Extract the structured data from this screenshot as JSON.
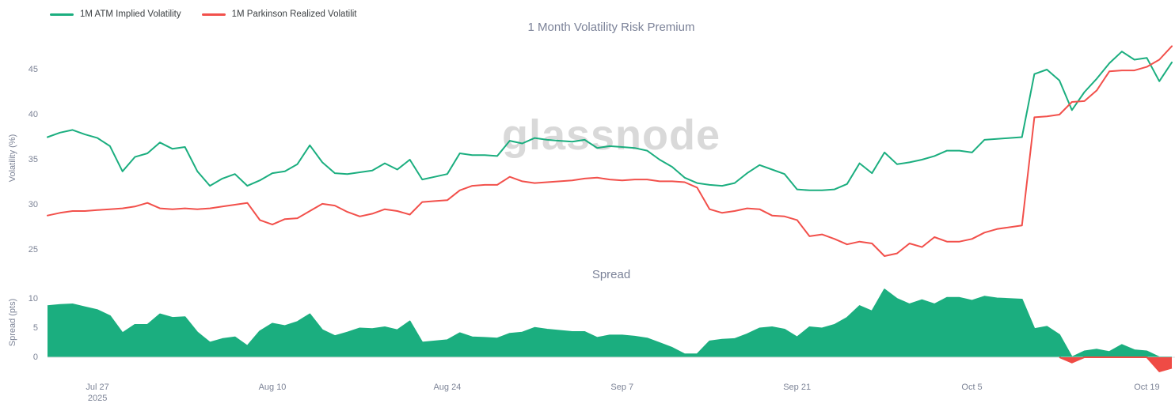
{
  "header": {
    "title": "1 Month Volatility Risk Premium",
    "legend": [
      {
        "label": "1M ATM Implied Volatility",
        "color": "#1BAE7F"
      },
      {
        "label": "1M Parkinson Realized Volatilit",
        "color": "#F2504B"
      }
    ]
  },
  "watermark": "glassnode",
  "colors": {
    "implied": "#1BAE7F",
    "realized": "#F2504B",
    "spread_positive": "#1BAE7F",
    "spread_negative": "#EF4B45",
    "baseline": "#DCDCDC",
    "axis_text": "#7C8396",
    "title_text": "#7B8298",
    "watermark": "#D9D9D9"
  },
  "chart_data": [
    {
      "type": "line",
      "title": "1 Month Volatility Risk Premium",
      "xlabel": "",
      "ylabel": "Volatility (%)",
      "ylim": [
        22.9,
        47.5
      ],
      "yticks": [
        25,
        30,
        35,
        40,
        45
      ],
      "grid": false,
      "legend_position": "top-left",
      "x_interval": "daily",
      "x_range": "Jul 23 2025 - Oct 21 2025",
      "xticks": [
        {
          "label": "Jul 27",
          "sub": "2025",
          "day": 4
        },
        {
          "label": "Aug 10",
          "day": 18
        },
        {
          "label": "Aug 24",
          "day": 32
        },
        {
          "label": "Sep 7",
          "day": 46
        },
        {
          "label": "Sep 21",
          "day": 60
        },
        {
          "label": "Oct 5",
          "day": 74
        },
        {
          "label": "Oct 19",
          "day": 88
        }
      ],
      "series": [
        {
          "name": "1M ATM Implied Volatility",
          "color": "#1BAE7F",
          "values": [
            37.5,
            38.0,
            38.3,
            37.8,
            37.4,
            36.5,
            33.7,
            35.3,
            35.7,
            36.9,
            36.2,
            36.4,
            33.7,
            32.1,
            32.9,
            33.4,
            32.1,
            32.7,
            33.5,
            33.7,
            34.5,
            36.6,
            34.7,
            33.5,
            33.4,
            33.6,
            33.8,
            34.6,
            33.9,
            35.0,
            32.8,
            33.1,
            33.4,
            35.7,
            35.5,
            35.5,
            35.4,
            37.1,
            36.8,
            37.4,
            37.2,
            37.1,
            37.0,
            37.2,
            36.3,
            36.5,
            36.4,
            36.3,
            36.0,
            35.0,
            34.2,
            33.0,
            32.4,
            32.2,
            32.1,
            32.4,
            33.5,
            34.4,
            33.9,
            33.4,
            31.7,
            31.6,
            31.6,
            31.7,
            32.3,
            34.6,
            33.5,
            35.8,
            34.5,
            34.7,
            35.0,
            35.4,
            36.0,
            36.0,
            35.8,
            37.2,
            37.3,
            37.4,
            37.5,
            44.5,
            45.0,
            43.8,
            40.5,
            42.5,
            44.0,
            45.7,
            47.0,
            46.1,
            46.3,
            43.7,
            45.8
          ]
        },
        {
          "name": "1M Parkinson Realized Volatilit",
          "color": "#F2504B",
          "values": [
            28.8,
            29.1,
            29.3,
            29.3,
            29.4,
            29.5,
            29.6,
            29.8,
            30.2,
            29.6,
            29.5,
            29.6,
            29.5,
            29.6,
            29.8,
            30.0,
            30.2,
            28.3,
            27.8,
            28.4,
            28.5,
            29.3,
            30.1,
            29.9,
            29.2,
            28.7,
            29.0,
            29.5,
            29.3,
            28.9,
            30.3,
            30.4,
            30.5,
            31.6,
            32.1,
            32.2,
            32.2,
            33.1,
            32.6,
            32.4,
            32.5,
            32.6,
            32.7,
            32.9,
            33.0,
            32.8,
            32.7,
            32.8,
            32.8,
            32.6,
            32.6,
            32.5,
            31.9,
            29.5,
            29.1,
            29.3,
            29.6,
            29.5,
            28.8,
            28.7,
            28.3,
            26.5,
            26.7,
            26.2,
            25.6,
            25.9,
            25.7,
            24.3,
            24.6,
            25.7,
            25.3,
            26.4,
            25.9,
            25.9,
            26.2,
            26.9,
            27.3,
            27.5,
            27.7,
            39.7,
            39.8,
            40.0,
            41.4,
            41.5,
            42.7,
            44.8,
            44.9,
            44.9,
            45.3,
            46.1,
            47.6
          ]
        }
      ]
    },
    {
      "type": "area",
      "title": "Spread",
      "xlabel": "",
      "ylabel": "Spread (pts)",
      "ylim": [
        -3,
        11.7
      ],
      "yticks": [
        0,
        5,
        10
      ],
      "grid": false,
      "positive_color": "#1BAE7F",
      "negative_color": "#EF4B45",
      "values": [
        8.7,
        8.9,
        9.0,
        8.5,
        8.0,
        7.0,
        4.1,
        5.5,
        5.5,
        7.3,
        6.7,
        6.8,
        4.2,
        2.5,
        3.1,
        3.4,
        1.9,
        4.4,
        5.7,
        5.3,
        6.0,
        7.3,
        4.6,
        3.6,
        4.2,
        4.9,
        4.8,
        5.1,
        4.6,
        6.1,
        2.5,
        2.7,
        2.9,
        4.1,
        3.4,
        3.3,
        3.2,
        4.0,
        4.2,
        5.0,
        4.7,
        4.5,
        4.3,
        4.3,
        3.3,
        3.7,
        3.7,
        3.5,
        3.2,
        2.4,
        1.6,
        0.5,
        0.5,
        2.7,
        3.0,
        3.1,
        3.9,
        4.9,
        5.1,
        4.7,
        3.4,
        5.1,
        4.9,
        5.5,
        6.7,
        8.7,
        7.8,
        11.5,
        9.9,
        9.0,
        9.7,
        9.0,
        10.1,
        10.1,
        9.6,
        10.3,
        10.0,
        9.9,
        9.8,
        4.8,
        5.2,
        3.8,
        -0.9,
        1.0,
        1.3,
        0.9,
        2.1,
        1.2,
        1.0,
        -2.4,
        -1.8
      ]
    }
  ]
}
